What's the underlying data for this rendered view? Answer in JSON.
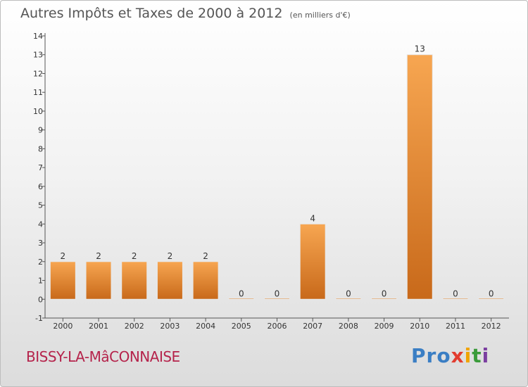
{
  "header": {
    "title": "Autres Impôts et Taxes de 2000 à 2012",
    "unit": "(en milliers d'€)"
  },
  "footer": {
    "commune": "BISSY-LA-MâCONNAISE",
    "brand_parts": [
      "Pro",
      "x",
      "i",
      "t",
      "i"
    ]
  },
  "colors": {
    "bar_light": "#f7a651",
    "bar_dark": "#c8691a",
    "commune_text": "#b5234b"
  },
  "chart_data": {
    "type": "bar",
    "title": "Autres Impôts et Taxes de 2000 à 2012",
    "subtitle": "(en milliers d'€)",
    "categories": [
      "2000",
      "2001",
      "2002",
      "2003",
      "2004",
      "2005",
      "2006",
      "2007",
      "2008",
      "2009",
      "2010",
      "2011",
      "2012"
    ],
    "values": [
      2,
      2,
      2,
      2,
      2,
      0,
      0,
      4,
      0,
      0,
      13,
      0,
      0
    ],
    "ylim": [
      -1,
      14
    ],
    "yticks": [
      "-1",
      "0",
      "1",
      "2",
      "3",
      "4",
      "5",
      "6",
      "7",
      "8",
      "9",
      "10",
      "11",
      "12",
      "13",
      "14"
    ],
    "grid": false,
    "xlabel": "",
    "ylabel": ""
  }
}
